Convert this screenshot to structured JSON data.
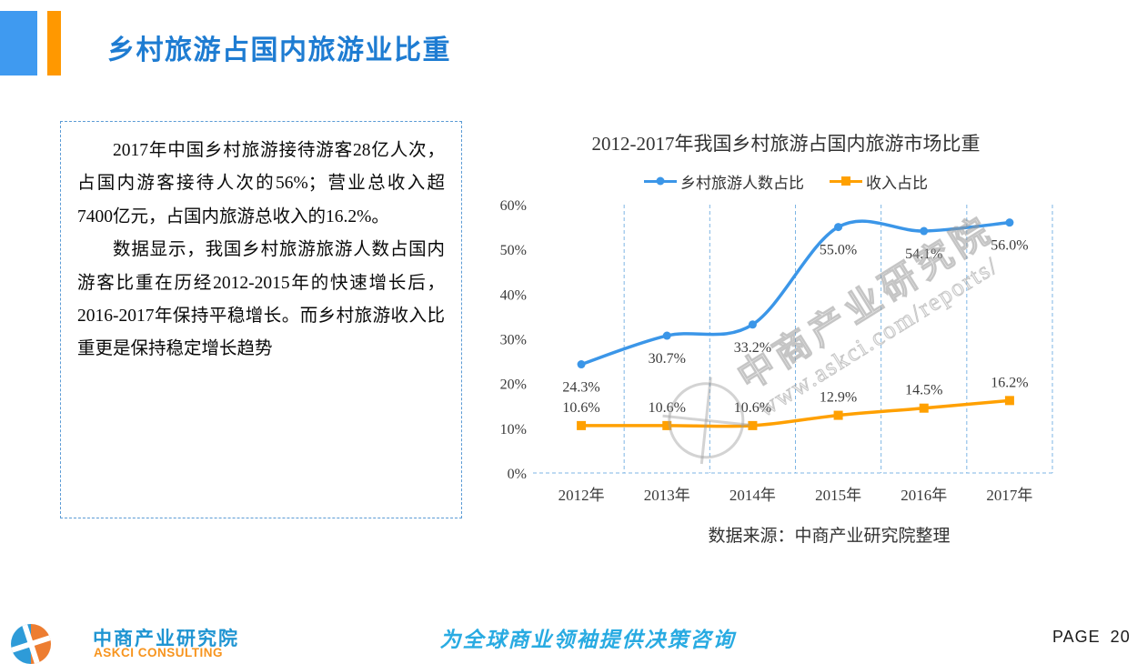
{
  "header": {
    "title": "乡村旅游占国内旅游业比重"
  },
  "colors": {
    "title_blue": "#1E7CD2",
    "deco_blue": "#3F9AF0",
    "deco_orange": "#FF9800",
    "slogan_blue": "#29ABE2",
    "logo_blue": "#2095D2",
    "logo_orange": "#F7941E"
  },
  "textbox": {
    "paragraph1": "2017年中国乡村旅游接待游客28亿人次，占国内游客接待人次的56%；营业总收入超7400亿元，占国内旅游总收入的16.2%。",
    "paragraph2": "数据显示，我国乡村旅游旅游人数占国内游客比重在历经2012-2015年的快速增长后，2016-2017年保持平稳增长。而乡村旅游收入比重更是保持稳定增长趋势"
  },
  "chart_data": {
    "type": "line",
    "title": "2012-2017年我国乡村旅游占国内旅游市场比重",
    "categories": [
      "2012年",
      "2013年",
      "2014年",
      "2015年",
      "2016年",
      "2017年"
    ],
    "series": [
      {
        "name": "乡村旅游人数占比",
        "color": "#3B96E8",
        "marker": "circle",
        "smooth": true,
        "label_position": "below",
        "values": [
          24.3,
          30.7,
          33.2,
          55.0,
          54.1,
          56.0
        ],
        "labels": [
          "24.3%",
          "30.7%",
          "33.2%",
          "55.0%",
          "54.1%",
          "56.0%"
        ]
      },
      {
        "name": "收入占比",
        "color": "#FFA000",
        "marker": "square",
        "smooth": true,
        "label_position": "above",
        "values": [
          10.6,
          10.6,
          10.6,
          12.9,
          14.5,
          16.2
        ],
        "labels": [
          "10.6%",
          "10.6%",
          "10.6%",
          "12.9%",
          "14.5%",
          "16.2%"
        ]
      }
    ],
    "y_axis": {
      "min": 0,
      "max": 60,
      "step": 10,
      "tick_labels": [
        "0%",
        "10%",
        "20%",
        "30%",
        "40%",
        "50%",
        "60%"
      ]
    },
    "gridlines": "vertical-dashed",
    "gridline_color": "#7EB6E4",
    "legend_position": "top",
    "source": "数据来源：中商产业研究院整理",
    "watermark": {
      "line1": "中商产业研究院",
      "line2": "www.askci.com/reports/"
    }
  },
  "footer": {
    "logo_cn": "中商产业研究院",
    "logo_en": "ASKCI CONSULTING",
    "slogan": "为全球商业领袖提供决策咨询",
    "page": "PAGE 20"
  }
}
